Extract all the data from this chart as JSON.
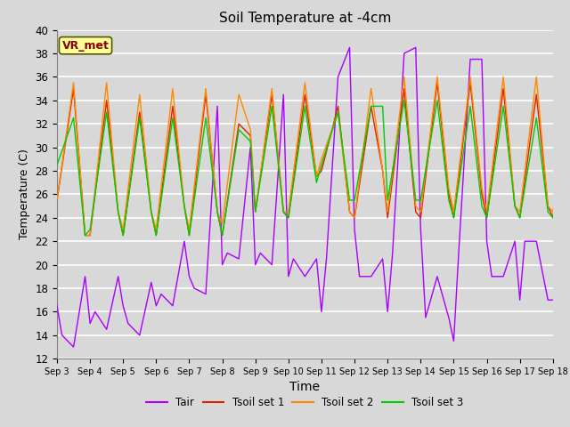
{
  "title": "Soil Temperature at -4cm",
  "xlabel": "Time",
  "ylabel": "Temperature (C)",
  "ylim": [
    12,
    40
  ],
  "yticks": [
    12,
    14,
    16,
    18,
    20,
    22,
    24,
    26,
    28,
    30,
    32,
    34,
    36,
    38,
    40
  ],
  "background_color": "#d8d8d8",
  "plot_bg_color": "#d8d8d8",
  "grid_color": "white",
  "annotation_text": "VR_met",
  "annotation_color": "#8B0000",
  "annotation_bg": "#FFFF99",
  "legend_entries": [
    "Tair",
    "Tsoil set 1",
    "Tsoil set 2",
    "Tsoil set 3"
  ],
  "colors": {
    "Tair": "#AA00FF",
    "Tsoil1": "#DD2200",
    "Tsoil2": "#FF8800",
    "Tsoil3": "#00CC00"
  },
  "x_tick_labels": [
    "Sep 3",
    "Sep 4",
    "Sep 5",
    "Sep 6",
    "Sep 7",
    "Sep 8",
    "Sep 9",
    "Sep 10",
    "Sep 11",
    "Sep 12",
    "Sep 13",
    "Sep 14",
    "Sep 15",
    "Sep 16",
    "Sep 17",
    "Sep 18"
  ],
  "tair_x": [
    0.0,
    0.15,
    0.5,
    0.85,
    1.0,
    1.15,
    1.5,
    1.85,
    2.0,
    2.15,
    2.5,
    2.85,
    3.0,
    3.15,
    3.5,
    3.85,
    4.0,
    4.15,
    4.5,
    4.85,
    5.0,
    5.15,
    5.5,
    5.85,
    6.0,
    6.15,
    6.5,
    6.85,
    7.0,
    7.15,
    7.5,
    7.85,
    8.0,
    8.15,
    8.5,
    8.85,
    9.0,
    9.15,
    9.5,
    9.85,
    10.0,
    10.15,
    10.5,
    10.85,
    11.0,
    11.15,
    11.5,
    11.85,
    12.0,
    12.15,
    12.5,
    12.85,
    13.0,
    13.15,
    13.5,
    13.85,
    14.0,
    14.15,
    14.5,
    14.85,
    15.0,
    15.15
  ],
  "tair": [
    16.5,
    14.0,
    13.0,
    19.0,
    15.0,
    16.0,
    14.5,
    19.0,
    16.5,
    15.0,
    14.0,
    18.5,
    16.5,
    17.5,
    16.5,
    22.0,
    19.0,
    18.0,
    17.5,
    33.5,
    20.0,
    21.0,
    20.5,
    30.0,
    20.0,
    21.0,
    20.0,
    34.5,
    19.0,
    20.5,
    19.0,
    20.5,
    16.0,
    20.5,
    36.0,
    38.5,
    23.0,
    19.0,
    19.0,
    20.5,
    16.0,
    21.0,
    38.0,
    38.5,
    23.0,
    15.5,
    19.0,
    15.5,
    13.5,
    21.0,
    37.5,
    37.5,
    22.0,
    19.0,
    19.0,
    22.0,
    17.0,
    22.0,
    22.0,
    17.0,
    17.0,
    17.0
  ],
  "tsoil1_x": [
    0.0,
    0.5,
    0.85,
    1.0,
    1.5,
    1.85,
    2.0,
    2.5,
    2.85,
    3.0,
    3.5,
    3.85,
    4.0,
    4.5,
    4.85,
    5.0,
    5.5,
    5.85,
    6.0,
    6.5,
    6.85,
    7.0,
    7.5,
    7.85,
    8.0,
    8.5,
    8.85,
    9.0,
    9.5,
    9.85,
    10.0,
    10.5,
    10.85,
    11.0,
    11.5,
    11.85,
    12.0,
    12.5,
    12.85,
    13.0,
    13.5,
    13.85,
    14.0,
    14.5,
    14.85,
    15.0,
    15.5,
    15.85
  ],
  "tsoil1": [
    25.5,
    35.0,
    22.5,
    22.5,
    34.0,
    24.5,
    22.5,
    33.0,
    24.5,
    22.5,
    33.5,
    25.0,
    22.5,
    34.5,
    24.5,
    22.5,
    32.0,
    31.0,
    24.5,
    34.5,
    24.5,
    24.0,
    34.5,
    27.5,
    28.0,
    33.5,
    24.5,
    24.0,
    33.5,
    28.0,
    24.0,
    35.0,
    24.5,
    24.0,
    35.5,
    26.0,
    24.0,
    35.5,
    26.0,
    24.0,
    35.0,
    25.0,
    24.0,
    34.5,
    25.0,
    24.0,
    34.5,
    24.5
  ],
  "tsoil2_x": [
    0.0,
    0.5,
    0.85,
    1.0,
    1.5,
    1.85,
    2.0,
    2.5,
    2.85,
    3.0,
    3.5,
    3.85,
    4.0,
    4.5,
    4.85,
    5.0,
    5.5,
    5.85,
    6.0,
    6.5,
    6.85,
    7.0,
    7.5,
    7.85,
    8.0,
    8.5,
    8.85,
    9.0,
    9.5,
    9.85,
    10.0,
    10.5,
    10.85,
    11.0,
    11.5,
    11.85,
    12.0,
    12.5,
    12.85,
    13.0,
    13.5,
    13.85,
    14.0,
    14.5,
    14.85,
    15.0,
    15.5,
    15.85
  ],
  "tsoil2": [
    25.5,
    35.5,
    22.5,
    22.5,
    35.5,
    24.5,
    23.0,
    34.5,
    24.5,
    23.0,
    35.0,
    25.0,
    23.0,
    35.0,
    24.5,
    23.5,
    34.5,
    31.5,
    24.5,
    35.0,
    24.5,
    24.5,
    35.5,
    27.5,
    29.0,
    33.0,
    24.5,
    24.0,
    35.0,
    28.0,
    24.5,
    36.0,
    25.0,
    24.5,
    36.0,
    26.5,
    24.5,
    36.0,
    26.5,
    24.5,
    36.0,
    25.0,
    24.5,
    36.0,
    25.0,
    24.5,
    34.5,
    25.0
  ],
  "tsoil3_x": [
    0.0,
    0.5,
    0.85,
    1.0,
    1.5,
    1.85,
    2.0,
    2.5,
    2.85,
    3.0,
    3.5,
    3.85,
    4.0,
    4.5,
    4.85,
    5.0,
    5.5,
    5.85,
    6.0,
    6.5,
    6.85,
    7.0,
    7.5,
    7.85,
    8.0,
    8.5,
    8.85,
    9.0,
    9.5,
    9.85,
    10.0,
    10.5,
    10.85,
    11.0,
    11.5,
    11.85,
    12.0,
    12.5,
    12.85,
    13.0,
    13.5,
    13.85,
    14.0,
    14.5,
    14.85,
    15.0,
    15.5,
    15.85
  ],
  "tsoil3": [
    28.5,
    32.5,
    22.5,
    23.0,
    33.0,
    24.5,
    22.5,
    32.5,
    24.5,
    22.5,
    32.5,
    25.0,
    22.5,
    32.5,
    24.5,
    22.5,
    31.5,
    30.5,
    24.5,
    33.5,
    24.5,
    24.0,
    33.5,
    27.0,
    28.5,
    33.0,
    25.5,
    25.5,
    33.5,
    33.5,
    25.5,
    34.0,
    25.5,
    25.5,
    34.0,
    25.5,
    24.0,
    33.5,
    25.0,
    24.0,
    33.5,
    25.0,
    24.0,
    32.5,
    24.5,
    24.0,
    32.0,
    24.0
  ]
}
